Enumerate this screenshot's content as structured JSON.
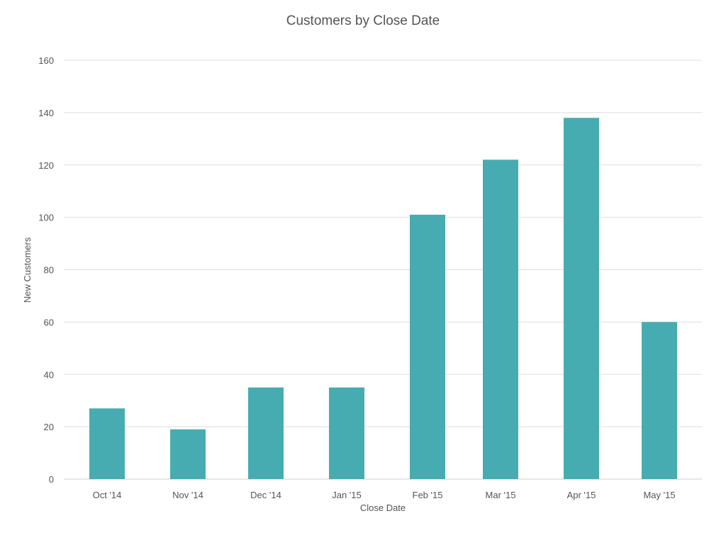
{
  "chart_data": {
    "type": "bar",
    "title": "Customers by Close Date",
    "xlabel": "Close Date",
    "ylabel": "New Customers",
    "categories": [
      "Oct '14",
      "Nov '14",
      "Dec '14",
      "Jan '15",
      "Feb '15",
      "Mar '15",
      "Apr '15",
      "May '15"
    ],
    "values": [
      27,
      19,
      35,
      35,
      101,
      122,
      138,
      60
    ],
    "ylim": [
      0,
      160
    ],
    "yticks": [
      "0",
      "20",
      "40",
      "60",
      "80",
      "100",
      "120",
      "140",
      "160"
    ],
    "grid": true,
    "legend": "none",
    "bar_color": "#47acb1"
  }
}
